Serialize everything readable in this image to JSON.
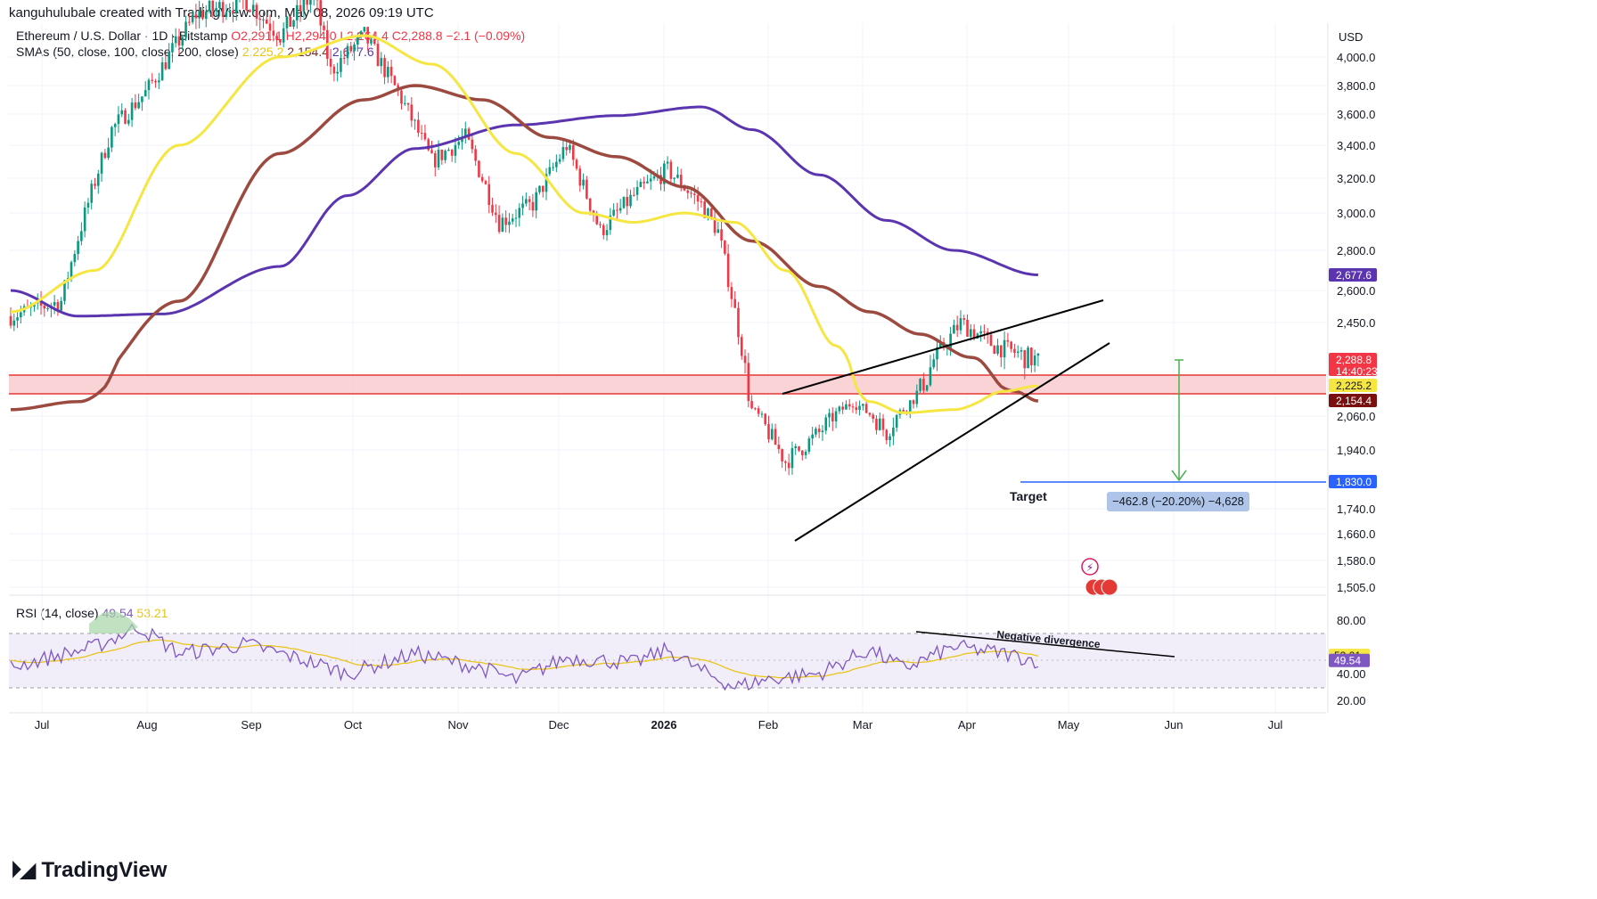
{
  "attribution": "kanguhulubale created with TradingView.com, May 08, 2026 09:19 UTC",
  "legend": {
    "symbol": "Ethereum / U.S. Dollar · 1D · Bitstamp",
    "ohlc": "O2,291.1  H2,294.0  L2,264.4  C2,288.8  −2.1 (−0.09%)",
    "sma_label": "SMAs (50, close, 100, close, 200, close)",
    "sma_values": [
      "2,225.2",
      "2,154.4",
      "2,677.6"
    ],
    "rsi_label": "RSI (14, close)",
    "rsi_values": [
      "49.54",
      "53.21"
    ]
  },
  "brand": "TradingView",
  "colors": {
    "up": "#089981",
    "down": "#f23645",
    "sma50": "#f5e642",
    "sma100": "#9c4a3f",
    "sma200": "#5b35b0",
    "zone_fill": "#f8c8cc",
    "zone_line": "#e53935",
    "target_line": "#2962ff",
    "arrow": "#4caf50",
    "rsi": "#7e57c2",
    "rsi_ma": "#e9c41a"
  },
  "chart_data": {
    "type": "candlestick",
    "currency": "USD",
    "y_ticks": [
      "4,000.0",
      "3,800.0",
      "3,600.0",
      "3,400.0",
      "3,200.0",
      "3,000.0",
      "2,800.0",
      "2,600.0",
      "2,450.0",
      "2,060.0",
      "1,940.0",
      "1,740.0",
      "1,660.0",
      "1,580.0",
      "1,505.0"
    ],
    "y_tick_values": [
      4000,
      3800,
      3600,
      3400,
      3200,
      3000,
      2800,
      2600,
      2450,
      2060,
      1940,
      1740,
      1660,
      1580,
      1505
    ],
    "x_labels": [
      "Jul",
      "Aug",
      "Sep",
      "Oct",
      "Nov",
      "Dec",
      "2026",
      "Feb",
      "Mar",
      "Apr",
      "May",
      "Jun",
      "Jul"
    ],
    "x_label_dates": [
      "2025-07-01",
      "2025-08-01",
      "2025-09-01",
      "2025-10-01",
      "2025-11-01",
      "2025-12-01",
      "2026-01-01",
      "2026-02-01",
      "2026-03-01",
      "2026-04-01",
      "2026-05-01",
      "2026-06-01",
      "2026-07-01"
    ],
    "last_price": "2,288.8",
    "countdown": "14:40:23",
    "price_labels": [
      {
        "value": 2677.6,
        "text": "2,677.6",
        "series": "SMA 200"
      },
      {
        "value": 2288.8,
        "text": "2,288.8",
        "series": "Close"
      },
      {
        "value": 2225.2,
        "text": "2,225.2",
        "series": "SMA 50"
      },
      {
        "value": 2154.4,
        "text": "2,154.4",
        "series": "SMA 100"
      },
      {
        "value": 1830.0,
        "text": "1,830.0",
        "series": "Target"
      }
    ],
    "support_zone": [
      2154.4,
      2225.2
    ],
    "target": {
      "label": "Target",
      "value": 1830.0,
      "measure": "−462.8 (−20.20%) −4,628"
    },
    "annotations": [
      "Negative divergence"
    ],
    "sma50": [
      [
        0,
        2500
      ],
      [
        25,
        2700
      ],
      [
        50,
        3400
      ],
      [
        80,
        4000
      ],
      [
        105,
        4150
      ],
      [
        125,
        3950
      ],
      [
        150,
        3350
      ],
      [
        170,
        3000
      ],
      [
        185,
        2950
      ],
      [
        200,
        3000
      ],
      [
        215,
        2950
      ],
      [
        230,
        2700
      ],
      [
        245,
        2350
      ],
      [
        255,
        2150
      ],
      [
        265,
        2080
      ],
      [
        280,
        2100
      ],
      [
        295,
        2200
      ],
      [
        305,
        2225
      ]
    ],
    "sma100": [
      [
        0,
        2100
      ],
      [
        20,
        2150
      ],
      [
        50,
        2550
      ],
      [
        80,
        3350
      ],
      [
        105,
        3700
      ],
      [
        120,
        3800
      ],
      [
        140,
        3700
      ],
      [
        160,
        3450
      ],
      [
        180,
        3330
      ],
      [
        200,
        3150
      ],
      [
        220,
        2850
      ],
      [
        240,
        2620
      ],
      [
        255,
        2500
      ],
      [
        270,
        2400
      ],
      [
        285,
        2300
      ],
      [
        298,
        2200
      ],
      [
        305,
        2154
      ]
    ],
    "sma200": [
      [
        0,
        2600
      ],
      [
        20,
        2480
      ],
      [
        45,
        2490
      ],
      [
        80,
        2720
      ],
      [
        100,
        3100
      ],
      [
        120,
        3380
      ],
      [
        150,
        3530
      ],
      [
        180,
        3590
      ],
      [
        205,
        3650
      ],
      [
        220,
        3500
      ],
      [
        240,
        3220
      ],
      [
        260,
        2960
      ],
      [
        280,
        2800
      ],
      [
        305,
        2677.6
      ]
    ],
    "rsi_ticks": [
      80,
      40,
      20
    ],
    "rsi_ticks_text": [
      "80.00",
      "40.00",
      "20.00"
    ],
    "rsi_band": [
      30,
      70
    ],
    "rsi_last": "49.54",
    "rsi_ma_last": "53.21"
  }
}
